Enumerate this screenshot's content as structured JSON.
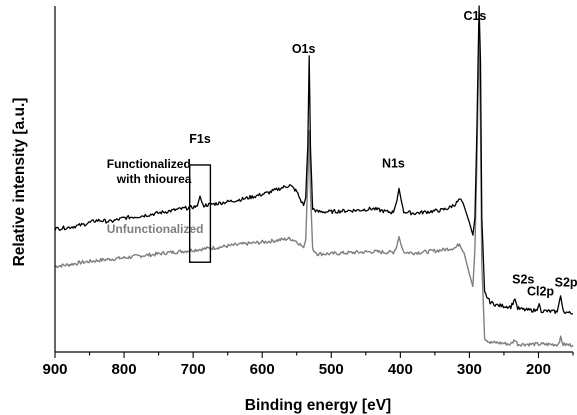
{
  "chart_data": {
    "type": "line",
    "xlabel": "Binding energy [eV]",
    "ylabel": "Relative intensity [a.u.]",
    "xlim": [
      900,
      150
    ],
    "x_reversed": true,
    "x_ticks": [
      900,
      800,
      700,
      600,
      500,
      400,
      300,
      200
    ],
    "y_ticks": [],
    "grid": false,
    "series": [
      {
        "name": "Functionalized with thiourea",
        "color": "#000000",
        "points": [
          [
            900,
            0.365
          ],
          [
            880,
            0.37
          ],
          [
            860,
            0.378
          ],
          [
            840,
            0.392
          ],
          [
            835,
            0.392
          ],
          [
            820,
            0.388
          ],
          [
            800,
            0.4
          ],
          [
            780,
            0.405
          ],
          [
            760,
            0.412
          ],
          [
            740,
            0.42
          ],
          [
            720,
            0.428
          ],
          [
            700,
            0.435
          ],
          [
            694,
            0.438
          ],
          [
            690,
            0.47
          ],
          [
            686,
            0.44
          ],
          [
            670,
            0.445
          ],
          [
            650,
            0.452
          ],
          [
            630,
            0.46
          ],
          [
            610,
            0.47
          ],
          [
            590,
            0.482
          ],
          [
            570,
            0.498
          ],
          [
            560,
            0.505
          ],
          [
            550,
            0.485
          ],
          [
            545,
            0.46
          ],
          [
            540,
            0.44
          ],
          [
            537,
            0.465
          ],
          [
            534,
            0.63
          ],
          [
            532,
            0.92
          ],
          [
            530,
            0.62
          ],
          [
            527,
            0.43
          ],
          [
            520,
            0.42
          ],
          [
            500,
            0.42
          ],
          [
            480,
            0.423
          ],
          [
            460,
            0.425
          ],
          [
            440,
            0.43
          ],
          [
            420,
            0.42
          ],
          [
            410,
            0.418
          ],
          [
            405,
            0.455
          ],
          [
            402,
            0.495
          ],
          [
            399,
            0.46
          ],
          [
            395,
            0.42
          ],
          [
            380,
            0.415
          ],
          [
            360,
            0.42
          ],
          [
            340,
            0.425
          ],
          [
            330,
            0.432
          ],
          [
            320,
            0.445
          ],
          [
            314,
            0.46
          ],
          [
            308,
            0.44
          ],
          [
            300,
            0.385
          ],
          [
            295,
            0.345
          ],
          [
            292,
            0.4
          ],
          [
            289,
            0.7
          ],
          [
            286,
            1.08
          ],
          [
            284,
            0.9
          ],
          [
            282,
            0.4
          ],
          [
            278,
            0.16
          ],
          [
            270,
            0.13
          ],
          [
            260,
            0.12
          ],
          [
            240,
            0.115
          ],
          [
            234,
            0.14
          ],
          [
            230,
            0.11
          ],
          [
            220,
            0.105
          ],
          [
            202,
            0.103
          ],
          [
            199,
            0.125
          ],
          [
            196,
            0.102
          ],
          [
            180,
            0.1
          ],
          [
            173,
            0.098
          ],
          [
            168,
            0.15
          ],
          [
            164,
            0.1
          ],
          [
            155,
            0.095
          ],
          [
            150,
            0.093
          ]
        ]
      },
      {
        "name": "Unfunctionalized",
        "color": "#7f7f7f",
        "points": [
          [
            900,
            0.245
          ],
          [
            880,
            0.25
          ],
          [
            860,
            0.258
          ],
          [
            840,
            0.263
          ],
          [
            820,
            0.268
          ],
          [
            800,
            0.272
          ],
          [
            780,
            0.278
          ],
          [
            760,
            0.282
          ],
          [
            740,
            0.288
          ],
          [
            720,
            0.292
          ],
          [
            700,
            0.297
          ],
          [
            680,
            0.302
          ],
          [
            660,
            0.307
          ],
          [
            640,
            0.313
          ],
          [
            620,
            0.318
          ],
          [
            600,
            0.322
          ],
          [
            580,
            0.328
          ],
          [
            560,
            0.334
          ],
          [
            550,
            0.325
          ],
          [
            545,
            0.315
          ],
          [
            540,
            0.305
          ],
          [
            537,
            0.33
          ],
          [
            534,
            0.52
          ],
          [
            532,
            0.68
          ],
          [
            530,
            0.48
          ],
          [
            527,
            0.3
          ],
          [
            520,
            0.285
          ],
          [
            500,
            0.285
          ],
          [
            480,
            0.288
          ],
          [
            460,
            0.29
          ],
          [
            440,
            0.292
          ],
          [
            420,
            0.29
          ],
          [
            410,
            0.29
          ],
          [
            405,
            0.31
          ],
          [
            402,
            0.34
          ],
          [
            399,
            0.315
          ],
          [
            395,
            0.29
          ],
          [
            380,
            0.288
          ],
          [
            360,
            0.292
          ],
          [
            340,
            0.297
          ],
          [
            320,
            0.305
          ],
          [
            314,
            0.318
          ],
          [
            308,
            0.29
          ],
          [
            300,
            0.22
          ],
          [
            295,
            0.18
          ],
          [
            292,
            0.3
          ],
          [
            289,
            0.6
          ],
          [
            286,
            0.99
          ],
          [
            284,
            0.7
          ],
          [
            282,
            0.25
          ],
          [
            278,
            0.015
          ],
          [
            270,
            0.0
          ],
          [
            260,
            0.0
          ],
          [
            240,
            -0.005
          ],
          [
            234,
            0.01
          ],
          [
            230,
            -0.005
          ],
          [
            200,
            -0.005
          ],
          [
            172,
            -0.006
          ],
          [
            168,
            0.015
          ],
          [
            164,
            -0.006
          ],
          [
            150,
            -0.008
          ]
        ]
      }
    ],
    "annotations": [
      {
        "text": "C1s",
        "x": 292,
        "y": 1.035
      },
      {
        "text": "O1s",
        "x": 540,
        "y": 0.93
      },
      {
        "text": "F1s",
        "x": 690,
        "y": 0.64
      },
      {
        "text": "N1s",
        "x": 410,
        "y": 0.562
      },
      {
        "text": "S2s",
        "x": 222,
        "y": 0.19
      },
      {
        "text": "Cl2p",
        "x": 197,
        "y": 0.152
      },
      {
        "text": "S2p",
        "x": 160,
        "y": 0.18
      }
    ],
    "series_labels": [
      {
        "series": 0,
        "lines": [
          "Functionalized",
          "with thiourea"
        ],
        "x": 825,
        "y": 0.56
      },
      {
        "series": 1,
        "text": "Unfunctionalized",
        "x": 825,
        "y": 0.352
      }
    ],
    "highlight_box": {
      "x0": 705,
      "x1": 675,
      "y0": 0.258,
      "y1": 0.57
    }
  }
}
